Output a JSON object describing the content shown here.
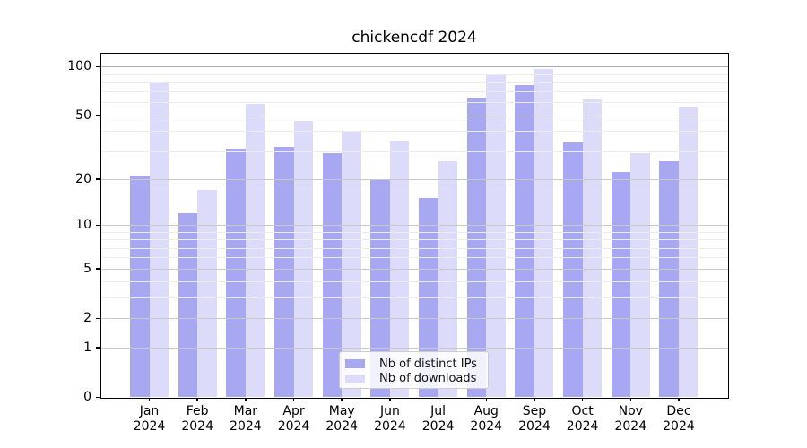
{
  "title": "chickencdf 2024",
  "legend": {
    "items": [
      {
        "label": "Nb of distinct IPs",
        "color": "#9c9cf0"
      },
      {
        "label": "Nb of downloads",
        "color": "#d7d7f9"
      }
    ]
  },
  "y_axis": {
    "tick_labels": [
      "0",
      "1",
      "2",
      "5",
      "10",
      "20",
      "50",
      "100"
    ]
  },
  "x_axis": {
    "months": [
      "Jan",
      "Feb",
      "Mar",
      "Apr",
      "May",
      "Jun",
      "Jul",
      "Aug",
      "Sep",
      "Oct",
      "Nov",
      "Dec"
    ],
    "year": "2024"
  },
  "chart_data": {
    "type": "bar",
    "title": "chickencdf 2024",
    "categories": [
      "Jan 2024",
      "Feb 2024",
      "Mar 2024",
      "Apr 2024",
      "May 2024",
      "Jun 2024",
      "Jul 2024",
      "Aug 2024",
      "Sep 2024",
      "Oct 2024",
      "Nov 2024",
      "Dec 2024"
    ],
    "series": [
      {
        "name": "Nb of distinct IPs",
        "color": "#9c9cf0",
        "values": [
          21,
          12,
          31,
          32,
          29,
          20,
          15,
          64,
          77,
          34,
          22,
          26
        ]
      },
      {
        "name": "Nb of downloads",
        "color": "#d7d7f9",
        "values": [
          80,
          17,
          59,
          46,
          40,
          35,
          26,
          88,
          97,
          63,
          29,
          57
        ]
      }
    ],
    "yscale": "log1p",
    "ylim": [
      0,
      120
    ],
    "y_major_ticks": [
      0,
      1,
      2,
      5,
      10,
      20,
      50,
      100
    ],
    "y_minor_ticks": [
      3,
      4,
      6,
      7,
      8,
      9,
      30,
      40,
      60,
      70,
      80,
      90
    ],
    "grid": true,
    "legend_position": "lower center",
    "colors": {
      "grid_major": "#c9c9c9",
      "grid_minor": "#ececec",
      "grid_top_line": "#ababab",
      "axis": "#000000"
    }
  }
}
